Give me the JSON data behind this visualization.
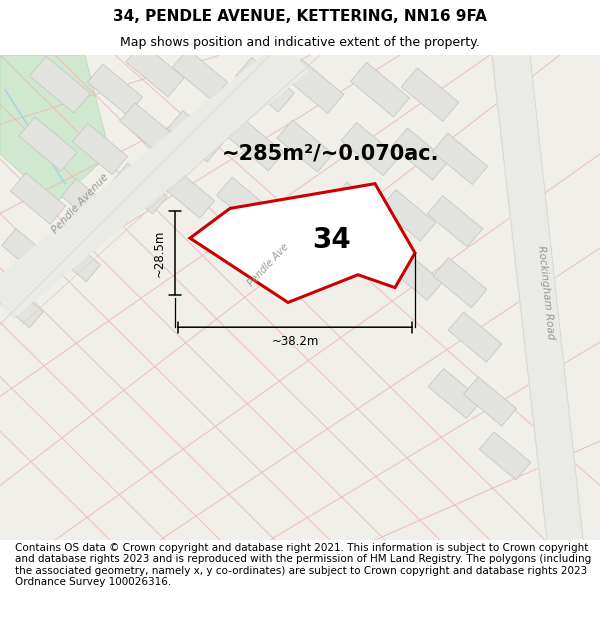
{
  "title": "34, PENDLE AVENUE, KETTERING, NN16 9FA",
  "subtitle": "Map shows position and indicative extent of the property.",
  "footer": "Contains OS data © Crown copyright and database right 2021. This information is subject to Crown copyright and database rights 2023 and is reproduced with the permission of HM Land Registry. The polygons (including the associated geometry, namely x, y co-ordinates) are subject to Crown copyright and database rights 2023 Ordnance Survey 100026316.",
  "area_label": "~285m²/~0.070ac.",
  "number_label": "34",
  "dim_width": "~38.2m",
  "dim_height": "~28.5m",
  "map_bg": "#f0efea",
  "road_color": "#f0b8b8",
  "road_gray": "#d8d8d4",
  "building_fill": "#e2e2de",
  "building_stroke": "#c8c8c4",
  "green_fill": "#d0e8d0",
  "plot_stroke": "#cc0000",
  "plot_fill": "#ffffff",
  "dim_color": "#000000",
  "title_fontsize": 11,
  "subtitle_fontsize": 9,
  "footer_fontsize": 7.5,
  "area_fontsize": 15,
  "number_fontsize": 20,
  "road_label_color": "#999994",
  "pendle_ave_label": "Pendle Ave",
  "pendle_ave_long": "Pendle Avenue",
  "rockingham_label": "Rockingham Road"
}
